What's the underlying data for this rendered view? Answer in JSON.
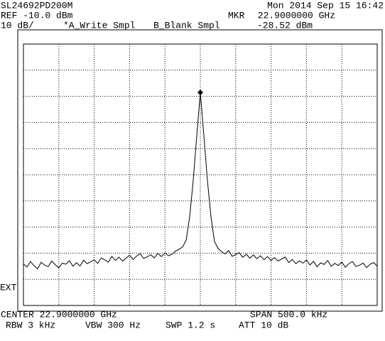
{
  "header": {
    "model": "SL24692PD200M",
    "datetime": "Mon 2014 Sep 15 16:42",
    "ref": "REF -10.0 dBm",
    "scale": "10 dB/",
    "trace_a": "*A_Write Smpl",
    "trace_b": "B_Blank Smpl"
  },
  "marker": {
    "label": "MKR",
    "frequency": "22.9000000 GHz",
    "value": -28.52,
    "value_label": "-28.52 dBm"
  },
  "side": {
    "ext": "EXT"
  },
  "footer": {
    "center": "CENTER 22.9000000 GHz",
    "span": "SPAN 500.0 kHz",
    "rbw": "RBW 3 kHz",
    "vbw": "VBW 300 Hz",
    "swp": "SWP 1.2 s",
    "att": "ATT 10 dB"
  },
  "trace": {
    "ylim": [
      -110,
      -10
    ],
    "color": "#000000",
    "values": [
      -94.1,
      -95.3,
      -93.2,
      -94.8,
      -96.0,
      -93.5,
      -94.6,
      -95.1,
      -93.0,
      -94.4,
      -95.6,
      -93.8,
      -94.2,
      -92.9,
      -95.0,
      -93.6,
      -94.9,
      -92.7,
      -94.0,
      -93.3,
      -92.5,
      -93.9,
      -91.8,
      -92.6,
      -93.4,
      -91.2,
      -92.8,
      -91.5,
      -93.0,
      -91.9,
      -90.8,
      -92.4,
      -91.1,
      -90.2,
      -92.0,
      -91.4,
      -90.6,
      -91.8,
      -90.1,
      -91.3,
      -89.9,
      -91.0,
      -90.4,
      -89.2,
      -88.5,
      -87.6,
      -85.0,
      -76.0,
      -62.0,
      -45.0,
      -28.52,
      -45.0,
      -62.0,
      -76.0,
      -85.5,
      -88.1,
      -89.4,
      -90.3,
      -89.0,
      -91.2,
      -90.5,
      -89.8,
      -91.6,
      -90.4,
      -91.9,
      -90.7,
      -92.1,
      -91.0,
      -92.5,
      -91.3,
      -92.8,
      -91.7,
      -93.0,
      -92.2,
      -91.5,
      -93.6,
      -92.4,
      -94.0,
      -92.9,
      -93.8,
      -92.6,
      -94.5,
      -93.1,
      -95.2,
      -93.7,
      -94.3,
      -92.8,
      -95.0,
      -93.9,
      -94.7,
      -93.4,
      -95.4,
      -94.0,
      -93.2,
      -95.1,
      -94.6,
      -93.8,
      -95.5,
      -94.2,
      -93.6,
      -95.0
    ]
  }
}
